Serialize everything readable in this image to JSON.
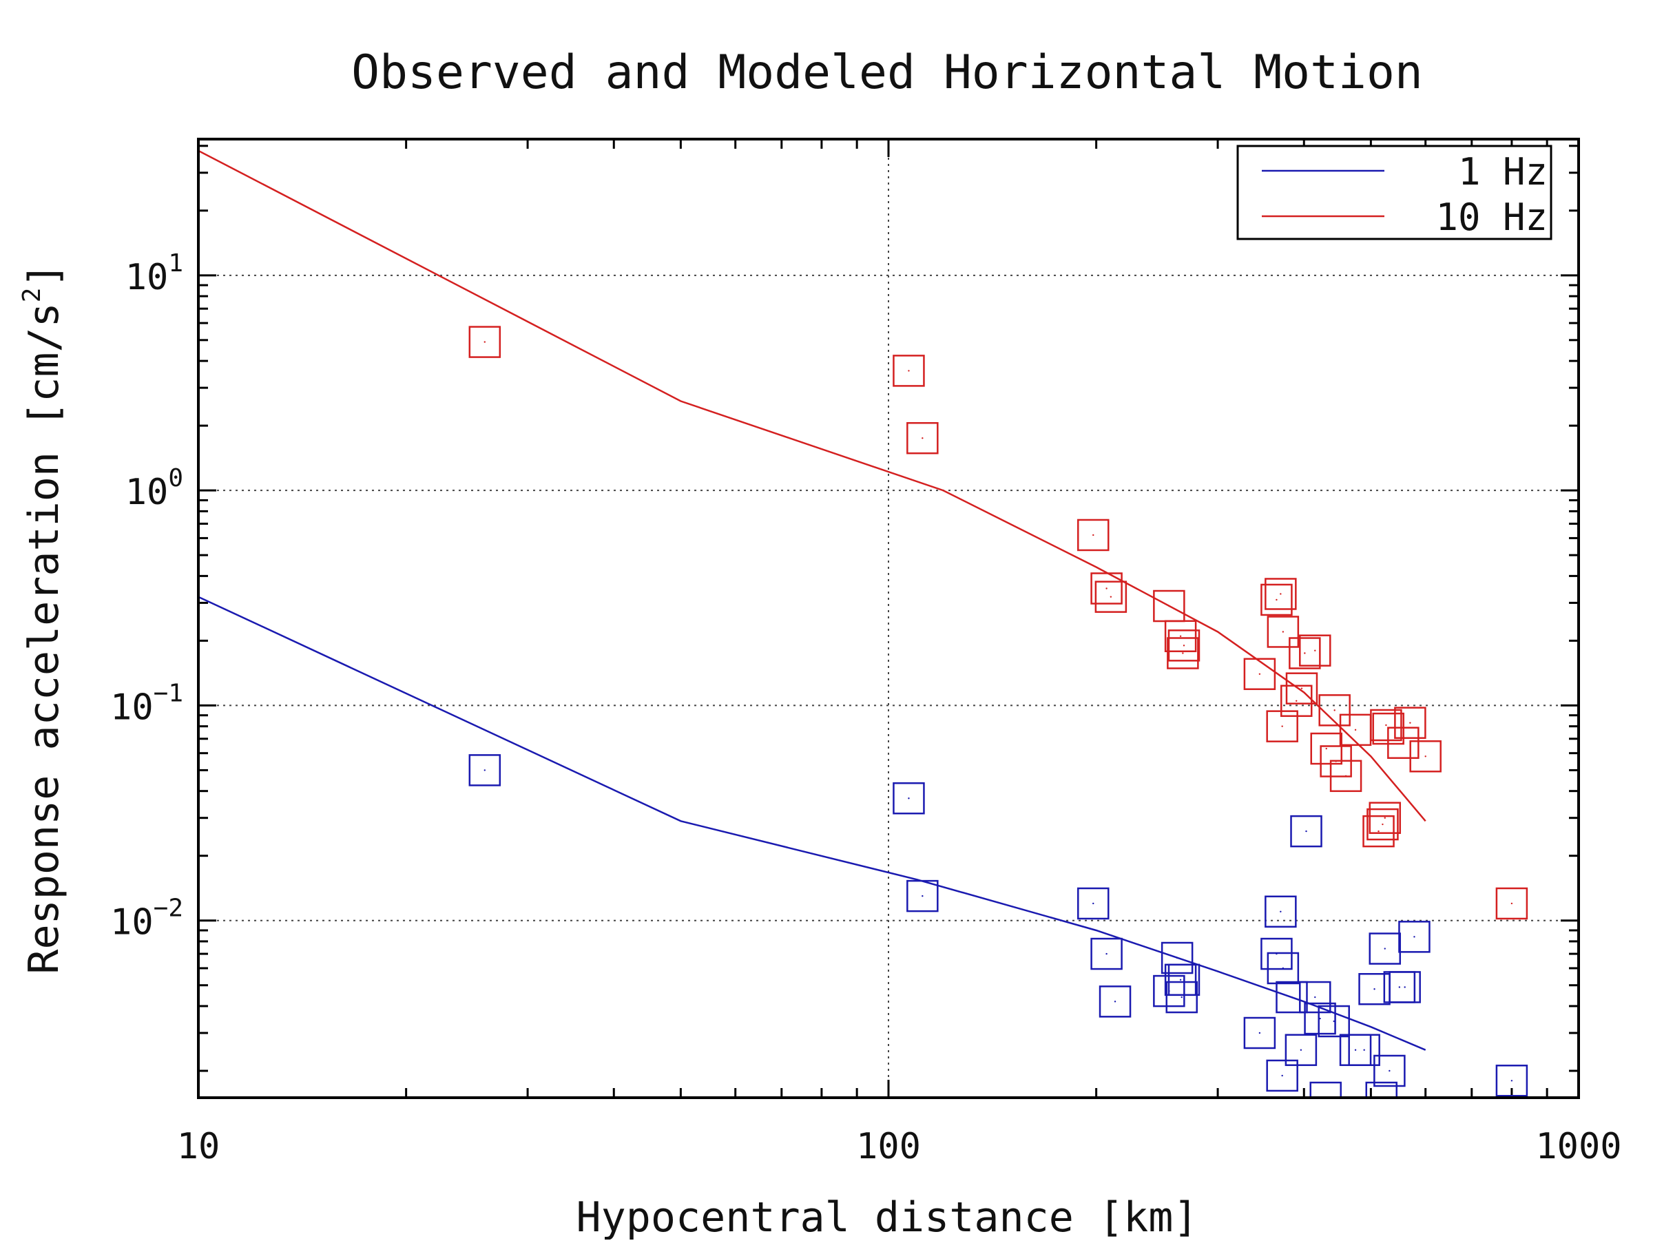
{
  "chart_data": {
    "type": "scatter",
    "title": "Observed and Modeled Horizontal Motion",
    "xlabel": "Hypocentral distance [km]",
    "ylabel": "Response acceleration [cm/s",
    "ylabel_sup": "2",
    "ylabel_suffix": "]",
    "x_scale": "log",
    "y_scale": "log",
    "xlim": [
      10,
      1000
    ],
    "ylim": [
      0.0015,
      43
    ],
    "grid": true,
    "legend_position": "top-right",
    "x_ticks": [
      {
        "value": 10,
        "label": "10"
      },
      {
        "value": 100,
        "label": "100"
      },
      {
        "value": 1000,
        "label": "1000"
      }
    ],
    "y_ticks": [
      {
        "value": 10,
        "base": "10",
        "exp": "1"
      },
      {
        "value": 1,
        "base": "10",
        "exp": "0"
      },
      {
        "value": 0.1,
        "base": "10",
        "exp": "−1"
      },
      {
        "value": 0.01,
        "base": "10",
        "exp": "−2"
      }
    ],
    "series": [
      {
        "name": "1 Hz",
        "color": "#1a1ab0",
        "model": {
          "x": [
            10,
            50,
            110,
            200,
            300,
            400,
            500,
            600
          ],
          "y": [
            0.32,
            0.029,
            0.0155,
            0.009,
            0.0058,
            0.0042,
            0.0032,
            0.0025
          ]
        },
        "observed": {
          "x": [
            26,
            107,
            112,
            198,
            207,
            213,
            255,
            262,
            266,
            268,
            265,
            345,
            365,
            370,
            372,
            373,
            384,
            396,
            403,
            415,
            422,
            430,
            442,
            475,
            489,
            506,
            518,
            524,
            532,
            550,
            560,
            578,
            800
          ],
          "y": [
            0.05,
            0.037,
            0.013,
            0.012,
            0.007,
            0.0042,
            0.0047,
            0.0067,
            0.0044,
            0.0053,
            0.0053,
            0.003,
            0.007,
            0.011,
            0.0019,
            0.006,
            0.0044,
            0.0025,
            0.026,
            0.0044,
            0.0035,
            0.0015,
            0.0034,
            0.0025,
            0.0025,
            0.0048,
            0.0015,
            0.0074,
            0.002,
            0.0049,
            0.0049,
            0.0084,
            0.0018
          ]
        }
      },
      {
        "name": "10 Hz",
        "color": "#d42020",
        "model": {
          "x": [
            10,
            50,
            120,
            200,
            300,
            400,
            500,
            600
          ],
          "y": [
            38,
            2.6,
            1.0,
            0.44,
            0.22,
            0.115,
            0.058,
            0.029
          ]
        },
        "observed": {
          "x": [
            26,
            107,
            112,
            198,
            207,
            210,
            255,
            265,
            268,
            267,
            345,
            365,
            370,
            372,
            373,
            390,
            397,
            401,
            415,
            431,
            445,
            443,
            460,
            475,
            513,
            520,
            524,
            526,
            530,
            557,
            570,
            600,
            800
          ],
          "y": [
            4.9,
            3.6,
            1.75,
            0.62,
            0.35,
            0.32,
            0.29,
            0.21,
            0.19,
            0.175,
            0.14,
            0.31,
            0.33,
            0.08,
            0.22,
            0.105,
            0.12,
            0.175,
            0.18,
            0.063,
            0.055,
            0.095,
            0.047,
            0.077,
            0.026,
            0.028,
            0.03,
            0.081,
            0.078,
            0.067,
            0.083,
            0.058,
            0.012
          ]
        }
      }
    ]
  }
}
